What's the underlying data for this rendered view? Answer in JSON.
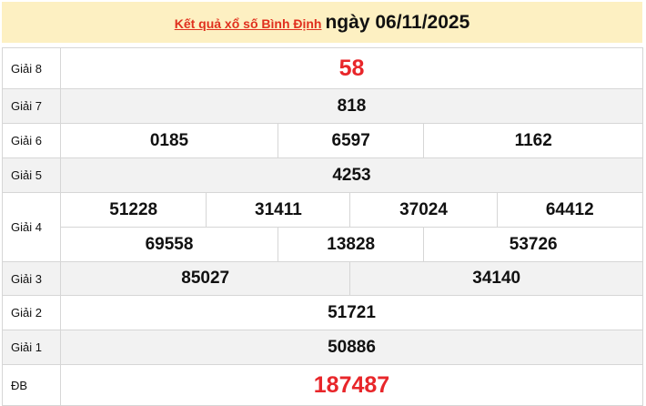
{
  "header": {
    "link": "Kết quả xổ số Bình Định",
    "date": "ngày 06/11/2025"
  },
  "colors": {
    "header_bg": "#fdf0c2",
    "accent_red": "#e8262a"
  },
  "prizes": {
    "g8": {
      "label": "Giải 8",
      "numbers": [
        "58"
      ]
    },
    "g7": {
      "label": "Giải 7",
      "numbers": [
        "818"
      ]
    },
    "g6": {
      "label": "Giải 6",
      "numbers": [
        "0185",
        "6597",
        "1162"
      ]
    },
    "g5": {
      "label": "Giải 5",
      "numbers": [
        "4253"
      ]
    },
    "g4": {
      "label": "Giải 4",
      "numbers": [
        "51228",
        "31411",
        "37024",
        "64412",
        "69558",
        "13828",
        "53726"
      ]
    },
    "g3": {
      "label": "Giải 3",
      "numbers": [
        "85027",
        "34140"
      ]
    },
    "g2": {
      "label": "Giải 2",
      "numbers": [
        "51721"
      ]
    },
    "g1": {
      "label": "Giải 1",
      "numbers": [
        "50886"
      ]
    },
    "db": {
      "label": "ĐB",
      "numbers": [
        "187487"
      ]
    }
  }
}
